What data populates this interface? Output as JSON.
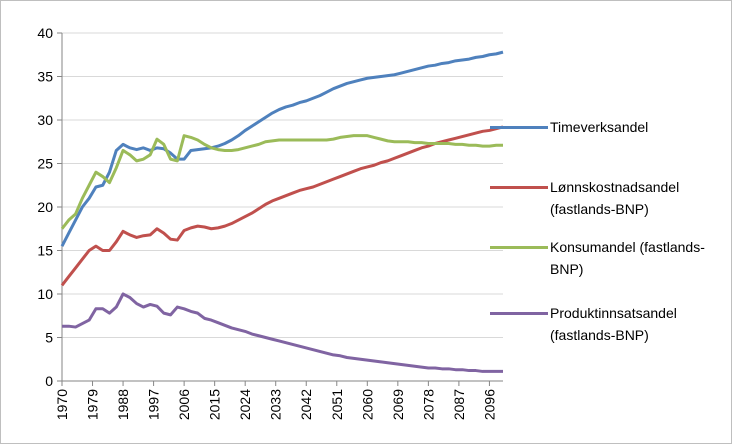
{
  "chart_data": {
    "type": "line",
    "x": [
      1970,
      1972,
      1974,
      1976,
      1978,
      1980,
      1982,
      1984,
      1986,
      1988,
      1990,
      1992,
      1994,
      1996,
      1998,
      2000,
      2002,
      2004,
      2006,
      2008,
      2010,
      2012,
      2014,
      2016,
      2018,
      2020,
      2022,
      2024,
      2026,
      2028,
      2030,
      2032,
      2034,
      2036,
      2038,
      2040,
      2042,
      2044,
      2046,
      2048,
      2050,
      2052,
      2054,
      2056,
      2058,
      2060,
      2062,
      2064,
      2066,
      2068,
      2070,
      2072,
      2074,
      2076,
      2078,
      2080,
      2082,
      2084,
      2086,
      2088,
      2090,
      2092,
      2094,
      2096,
      2098,
      2100
    ],
    "series": [
      {
        "name": "Timeverksandel",
        "color": "#4f81bd",
        "values": [
          15.5,
          17,
          18.5,
          20,
          21,
          22.3,
          22.5,
          24,
          26.5,
          27.2,
          26.8,
          26.6,
          26.8,
          26.5,
          26.8,
          26.7,
          26.2,
          25.5,
          25.5,
          26.5,
          26.6,
          26.7,
          26.8,
          27.0,
          27.3,
          27.7,
          28.2,
          28.8,
          29.3,
          29.8,
          30.3,
          30.8,
          31.2,
          31.5,
          31.7,
          32.0,
          32.2,
          32.5,
          32.8,
          33.2,
          33.6,
          33.9,
          34.2,
          34.4,
          34.6,
          34.8,
          34.9,
          35.0,
          35.1,
          35.2,
          35.4,
          35.6,
          35.8,
          36.0,
          36.2,
          36.3,
          36.5,
          36.6,
          36.8,
          36.9,
          37.0,
          37.2,
          37.3,
          37.5,
          37.6,
          37.8
        ]
      },
      {
        "name": "Lønnskostnadsandel (fastlands-BNP)",
        "color": "#c0504d",
        "values": [
          11,
          12,
          13,
          14,
          15,
          15.5,
          15,
          15,
          16,
          17.2,
          16.8,
          16.5,
          16.7,
          16.8,
          17.5,
          17,
          16.3,
          16.2,
          17.3,
          17.6,
          17.8,
          17.7,
          17.5,
          17.6,
          17.8,
          18.1,
          18.5,
          18.9,
          19.3,
          19.8,
          20.3,
          20.7,
          21.0,
          21.3,
          21.6,
          21.9,
          22.1,
          22.3,
          22.6,
          22.9,
          23.2,
          23.5,
          23.8,
          24.1,
          24.4,
          24.6,
          24.8,
          25.1,
          25.3,
          25.6,
          25.9,
          26.2,
          26.5,
          26.8,
          27.0,
          27.3,
          27.5,
          27.7,
          27.9,
          28.1,
          28.3,
          28.5,
          28.7,
          28.8,
          29.0,
          29.2
        ]
      },
      {
        "name": "Konsumandel (fastlands-BNP)",
        "color": "#9bbb59",
        "values": [
          17.5,
          18.5,
          19.2,
          21,
          22.5,
          24,
          23.5,
          22.8,
          24.5,
          26.5,
          26,
          25.3,
          25.5,
          26,
          27.8,
          27.2,
          25.5,
          25.3,
          28.2,
          28.0,
          27.7,
          27.2,
          26.8,
          26.6,
          26.5,
          26.5,
          26.6,
          26.8,
          27.0,
          27.2,
          27.5,
          27.6,
          27.7,
          27.7,
          27.7,
          27.7,
          27.7,
          27.7,
          27.7,
          27.7,
          27.8,
          28.0,
          28.1,
          28.2,
          28.2,
          28.2,
          28.0,
          27.8,
          27.6,
          27.5,
          27.5,
          27.5,
          27.4,
          27.4,
          27.3,
          27.3,
          27.3,
          27.3,
          27.2,
          27.2,
          27.1,
          27.1,
          27.0,
          27.0,
          27.1,
          27.1
        ]
      },
      {
        "name": "Produktinnsatsandel (fastlands-BNP)",
        "color": "#8064a2",
        "values": [
          6.3,
          6.3,
          6.2,
          6.6,
          7.0,
          8.3,
          8.3,
          7.8,
          8.5,
          10.0,
          9.6,
          8.9,
          8.5,
          8.8,
          8.6,
          7.8,
          7.6,
          8.5,
          8.3,
          8.0,
          7.8,
          7.2,
          7.0,
          6.7,
          6.4,
          6.1,
          5.9,
          5.7,
          5.4,
          5.2,
          5.0,
          4.8,
          4.6,
          4.4,
          4.2,
          4.0,
          3.8,
          3.6,
          3.4,
          3.2,
          3.0,
          2.9,
          2.7,
          2.6,
          2.5,
          2.4,
          2.3,
          2.2,
          2.1,
          2.0,
          1.9,
          1.8,
          1.7,
          1.6,
          1.5,
          1.5,
          1.4,
          1.4,
          1.3,
          1.3,
          1.2,
          1.2,
          1.1,
          1.1,
          1.1,
          1.1
        ]
      }
    ],
    "xlim": [
      1970,
      2100
    ],
    "xticks": [
      1970,
      1979,
      1988,
      1997,
      2006,
      2015,
      2024,
      2033,
      2042,
      2051,
      2060,
      2069,
      2078,
      2087,
      2096
    ],
    "ylim": [
      0,
      40
    ],
    "yticks": [
      0,
      5,
      10,
      15,
      20,
      25,
      30,
      35,
      40
    ],
    "grid": true,
    "legend": "right"
  }
}
